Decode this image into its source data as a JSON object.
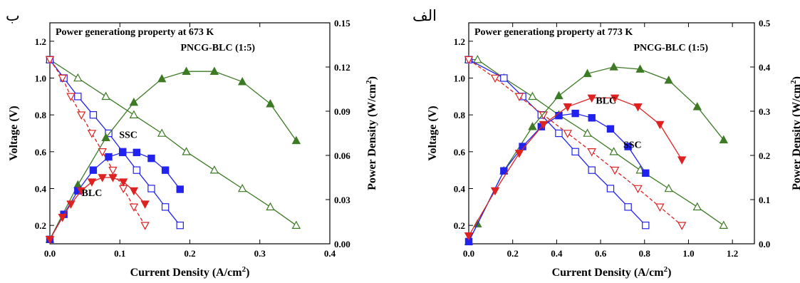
{
  "chart_data": [
    {
      "type": "line",
      "panel_label": "ب",
      "title": "Power generationg property at 673 K",
      "xlabel": "Current Density (A/cm²)",
      "ylabel": "Voltage (V)",
      "ylabel_right": "Power Density (W/cm²)",
      "xlim": [
        0,
        0.4
      ],
      "ylim": [
        0.1,
        1.3
      ],
      "ylim_right": [
        0,
        0.15
      ],
      "x_ticks": [
        "0.0",
        "0.1",
        "0.2",
        "0.3",
        "0.4"
      ],
      "y_ticks": [
        "0.2",
        "0.4",
        "0.6",
        "0.8",
        "1.0",
        "1.2"
      ],
      "y_ticks_right": [
        "0.00",
        "0.03",
        "0.06",
        "0.09",
        "0.12",
        "0.15"
      ],
      "grid": false,
      "series": [
        {
          "name": "PNCG-BLC (1:5)",
          "color": "#3c7a24",
          "axis": "left",
          "marker": "triangle-up",
          "filled": false,
          "x": [
            0,
            0.04,
            0.08,
            0.12,
            0.16,
            0.195,
            0.235,
            0.275,
            0.315,
            0.352
          ],
          "y": [
            1.1,
            1.0,
            0.9,
            0.8,
            0.7,
            0.6,
            0.5,
            0.4,
            0.3,
            0.2
          ]
        },
        {
          "name": "SSC",
          "color": "#2222ee",
          "axis": "left",
          "marker": "square",
          "filled": false,
          "x": [
            0,
            0.02,
            0.04,
            0.062,
            0.084,
            0.104,
            0.124,
            0.145,
            0.165,
            0.186
          ],
          "y": [
            1.1,
            1.0,
            0.9,
            0.8,
            0.7,
            0.6,
            0.5,
            0.4,
            0.3,
            0.2
          ]
        },
        {
          "name": "BLC",
          "color": "#dd2222",
          "axis": "left",
          "marker": "triangle-down",
          "filled": false,
          "x": [
            0,
            0.018,
            0.03,
            0.045,
            0.06,
            0.075,
            0.09,
            0.105,
            0.12,
            0.136
          ],
          "y": [
            1.1,
            1.0,
            0.9,
            0.8,
            0.7,
            0.6,
            0.5,
            0.4,
            0.3,
            0.2
          ]
        },
        {
          "name": "PNCG-BLC (1:5)",
          "color": "#3c7a24",
          "axis": "right",
          "marker": "triangle-up",
          "filled": true,
          "x": [
            0,
            0.04,
            0.08,
            0.12,
            0.16,
            0.195,
            0.235,
            0.275,
            0.315,
            0.352
          ],
          "y": [
            0.003,
            0.04,
            0.072,
            0.096,
            0.112,
            0.117,
            0.117,
            0.11,
            0.095,
            0.07
          ]
        },
        {
          "name": "SSC",
          "color": "#2222ee",
          "axis": "right",
          "marker": "square",
          "filled": true,
          "x": [
            0,
            0.02,
            0.04,
            0.062,
            0.084,
            0.104,
            0.124,
            0.145,
            0.165,
            0.186
          ],
          "y": [
            0.003,
            0.02,
            0.036,
            0.05,
            0.059,
            0.062,
            0.062,
            0.058,
            0.05,
            0.037
          ]
        },
        {
          "name": "BLC",
          "color": "#dd2222",
          "axis": "right",
          "marker": "triangle-down",
          "filled": true,
          "x": [
            0,
            0.018,
            0.03,
            0.045,
            0.06,
            0.075,
            0.09,
            0.105,
            0.12,
            0.136
          ],
          "y": [
            0.003,
            0.018,
            0.027,
            0.036,
            0.042,
            0.045,
            0.045,
            0.042,
            0.036,
            0.027
          ]
        }
      ],
      "annotations": [
        {
          "text": "PNCG-BLC (1:5)",
          "x": 0.24,
          "y": 1.15
        },
        {
          "text": "SSC",
          "x": 0.112,
          "y": 0.675
        },
        {
          "text": "BLC",
          "x": 0.06,
          "y": 0.36
        }
      ]
    },
    {
      "type": "line",
      "panel_label": "الف",
      "title": "Power generationg property at 773 K",
      "xlabel": "Current Density (A/cm²)",
      "ylabel": "Voltage (V)",
      "ylabel_right": "Power Density (W/cm²)",
      "xlim": [
        0,
        1.3
      ],
      "ylim": [
        0.1,
        1.3
      ],
      "ylim_right": [
        0,
        0.5
      ],
      "x_ticks": [
        "0.0",
        "0.2",
        "0.4",
        "0.6",
        "0.8",
        "1.0",
        "1.2"
      ],
      "y_ticks": [
        "0.2",
        "0.4",
        "0.6",
        "0.8",
        "1.0",
        "1.2"
      ],
      "y_ticks_right": [
        "0.0",
        "0.1",
        "0.2",
        "0.3",
        "0.4",
        "0.5"
      ],
      "grid": false,
      "series": [
        {
          "name": "PNCG-BLC (1:5)",
          "color": "#3c7a24",
          "axis": "left",
          "marker": "triangle-up",
          "filled": false,
          "x": [
            0,
            0.04,
            0.16,
            0.29,
            0.41,
            0.54,
            0.66,
            0.78,
            0.91,
            1.04,
            1.16
          ],
          "y": [
            1.1,
            1.1,
            1.0,
            0.9,
            0.8,
            0.7,
            0.6,
            0.5,
            0.4,
            0.3,
            0.2
          ]
        },
        {
          "name": "SSC",
          "color": "#2222ee",
          "axis": "left",
          "marker": "square",
          "filled": false,
          "x": [
            0,
            0.16,
            0.245,
            0.33,
            0.41,
            0.485,
            0.56,
            0.645,
            0.725,
            0.805
          ],
          "y": [
            1.1,
            1.0,
            0.9,
            0.8,
            0.7,
            0.6,
            0.5,
            0.4,
            0.3,
            0.2
          ]
        },
        {
          "name": "BLC",
          "color": "#dd2222",
          "axis": "left",
          "marker": "triangle-down",
          "filled": false,
          "x": [
            0,
            0.12,
            0.23,
            0.34,
            0.45,
            0.56,
            0.665,
            0.77,
            0.87,
            0.97
          ],
          "y": [
            1.1,
            1.0,
            0.9,
            0.8,
            0.7,
            0.6,
            0.5,
            0.4,
            0.3,
            0.2
          ]
        },
        {
          "name": "PNCG-BLC (1:5)",
          "color": "#3c7a24",
          "axis": "right",
          "marker": "triangle-up",
          "filled": true,
          "x": [
            0,
            0.04,
            0.16,
            0.29,
            0.41,
            0.54,
            0.66,
            0.78,
            0.91,
            1.04,
            1.16
          ],
          "y": [
            0.005,
            0.045,
            0.165,
            0.265,
            0.335,
            0.385,
            0.4,
            0.395,
            0.37,
            0.31,
            0.235
          ]
        },
        {
          "name": "SSC",
          "color": "#2222ee",
          "axis": "right",
          "marker": "square",
          "filled": true,
          "x": [
            0,
            0.16,
            0.245,
            0.33,
            0.41,
            0.485,
            0.56,
            0.645,
            0.725,
            0.805
          ],
          "y": [
            0.005,
            0.165,
            0.22,
            0.265,
            0.29,
            0.295,
            0.285,
            0.26,
            0.22,
            0.16
          ]
        },
        {
          "name": "BLC",
          "color": "#dd2222",
          "axis": "right",
          "marker": "triangle-down",
          "filled": true,
          "x": [
            0,
            0.12,
            0.23,
            0.34,
            0.45,
            0.56,
            0.665,
            0.77,
            0.87,
            0.97
          ],
          "y": [
            0.018,
            0.12,
            0.205,
            0.27,
            0.31,
            0.33,
            0.33,
            0.31,
            0.27,
            0.19
          ]
        }
      ],
      "annotations": [
        {
          "text": "PNCG-BLC (1:5)",
          "x": 0.92,
          "y": 1.15
        },
        {
          "text": "BLC",
          "x": 0.625,
          "y": 0.86
        },
        {
          "text": "SSC",
          "x": 0.745,
          "y": 0.62
        }
      ]
    }
  ]
}
